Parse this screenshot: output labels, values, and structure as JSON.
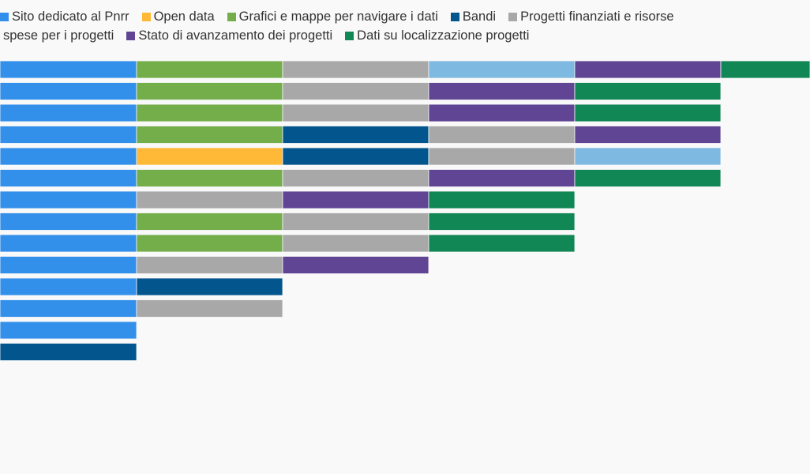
{
  "chart_data": {
    "type": "bar",
    "orientation": "horizontal-stacked",
    "legend_placement": "top-left",
    "grid": false,
    "categories_shown": false,
    "series": [
      {
        "key": "sito",
        "name": "Sito dedicato al Pnrr",
        "color": "#3390ea"
      },
      {
        "key": "open",
        "name": "Open data",
        "color": "#ffb937"
      },
      {
        "key": "grafici",
        "name": "Grafici e mappe per navigare i dati",
        "color": "#74ae4b"
      },
      {
        "key": "bandi",
        "name": "Bandi",
        "color": "#03558e"
      },
      {
        "key": "progetti",
        "name": "Progetti finanziati e risorse spese per i progetti",
        "color": "#a8a8a8"
      },
      {
        "key": "stato",
        "name": "Stato di avanzamento dei progetti",
        "color": "#5f4594"
      },
      {
        "key": "dati",
        "name": "Dati su localizzazione progetti",
        "color": "#108755"
      },
      {
        "key": "unlabeled",
        "name": "",
        "color": "#7db9e0"
      }
    ],
    "rows": [
      [
        "sito",
        "grafici",
        "progetti",
        "unlabeled",
        "stato",
        "dati"
      ],
      [
        "sito",
        "grafici",
        "progetti",
        "stato",
        "dati"
      ],
      [
        "sito",
        "grafici",
        "progetti",
        "stato",
        "dati"
      ],
      [
        "sito",
        "grafici",
        "bandi",
        "progetti",
        "stato"
      ],
      [
        "sito",
        "open",
        "bandi",
        "progetti",
        "unlabeled"
      ],
      [
        "sito",
        "grafici",
        "progetti",
        "stato",
        "dati"
      ],
      [
        "sito",
        "progetti",
        "stato",
        "dati"
      ],
      [
        "sito",
        "grafici",
        "progetti",
        "dati"
      ],
      [
        "sito",
        "grafici",
        "progetti",
        "dati"
      ],
      [
        "sito",
        "progetti",
        "stato"
      ],
      [
        "sito",
        "bandi"
      ],
      [
        "sito",
        "progetti"
      ],
      [
        "sito"
      ],
      [
        "bandi"
      ]
    ],
    "segment_value": 1
  },
  "legend": [
    {
      "key": "sito",
      "label": "Sito dedicato al Pnrr",
      "color": "#3390ea"
    },
    {
      "key": "open",
      "label": "Open data",
      "color": "#ffb937"
    },
    {
      "key": "grafici",
      "label": "Grafici e mappe per navigare i dati",
      "color": "#74ae4b"
    },
    {
      "key": "bandi",
      "label": "Bandi",
      "color": "#03558e"
    },
    {
      "key": "progetti",
      "label_line1": "Progetti finanziati e risorse",
      "label_line2": "spese per i progetti",
      "color": "#a8a8a8"
    },
    {
      "key": "stato",
      "label": "Stato di avanzamento dei progetti",
      "color": "#5f4594"
    },
    {
      "key": "dati",
      "label": "Dati su localizzazione progetti",
      "color": "#108755"
    }
  ],
  "background": "#f9f9f9"
}
